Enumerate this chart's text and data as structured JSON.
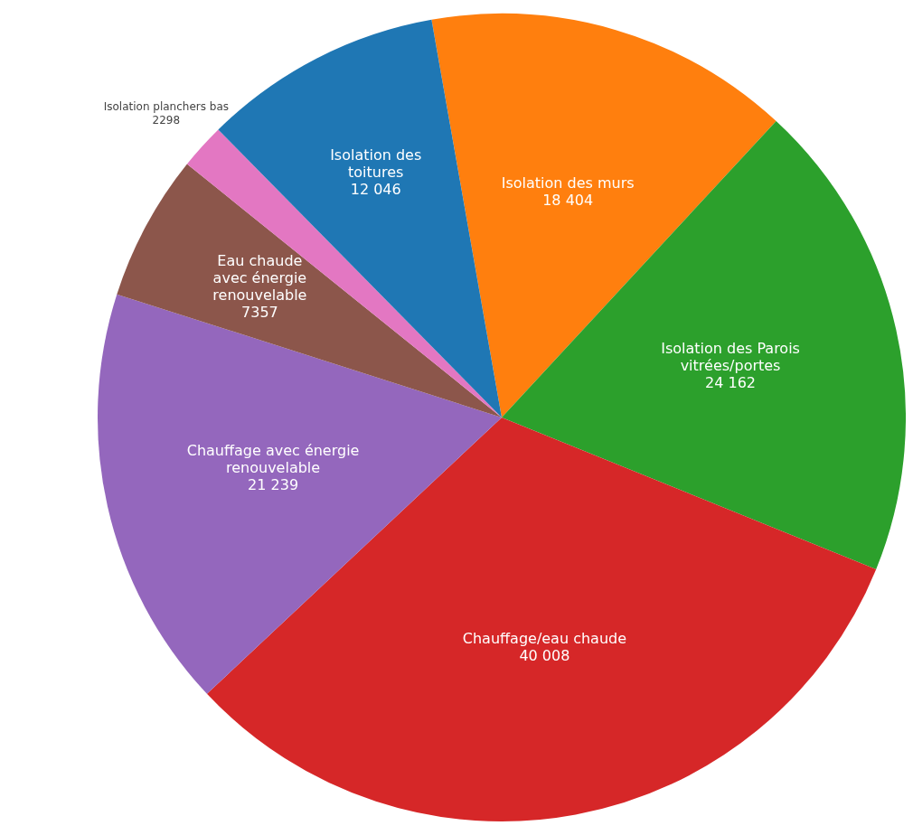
{
  "chart_data": {
    "type": "pie",
    "categories": [
      "Isolation des murs",
      "Isolation des Parois vitrées/portes",
      "Chauffage/eau chaude",
      "Chauffage avec énergie renouvelable",
      "Eau chaude avec énergie renouvelable",
      "Isolation planchers bas",
      "Isolation des toitures"
    ],
    "values": [
      18404,
      24162,
      40008,
      21239,
      7357,
      2298,
      12046
    ],
    "value_labels": [
      "18 404",
      "24 162",
      "40 008",
      "21 239",
      "7357",
      "2298",
      "12 046"
    ],
    "colors": [
      "#ff7f0e",
      "#2ca02c",
      "#d62728",
      "#9467bd",
      "#8c564b",
      "#e377c2",
      "#1f77b4"
    ],
    "legend": false
  }
}
